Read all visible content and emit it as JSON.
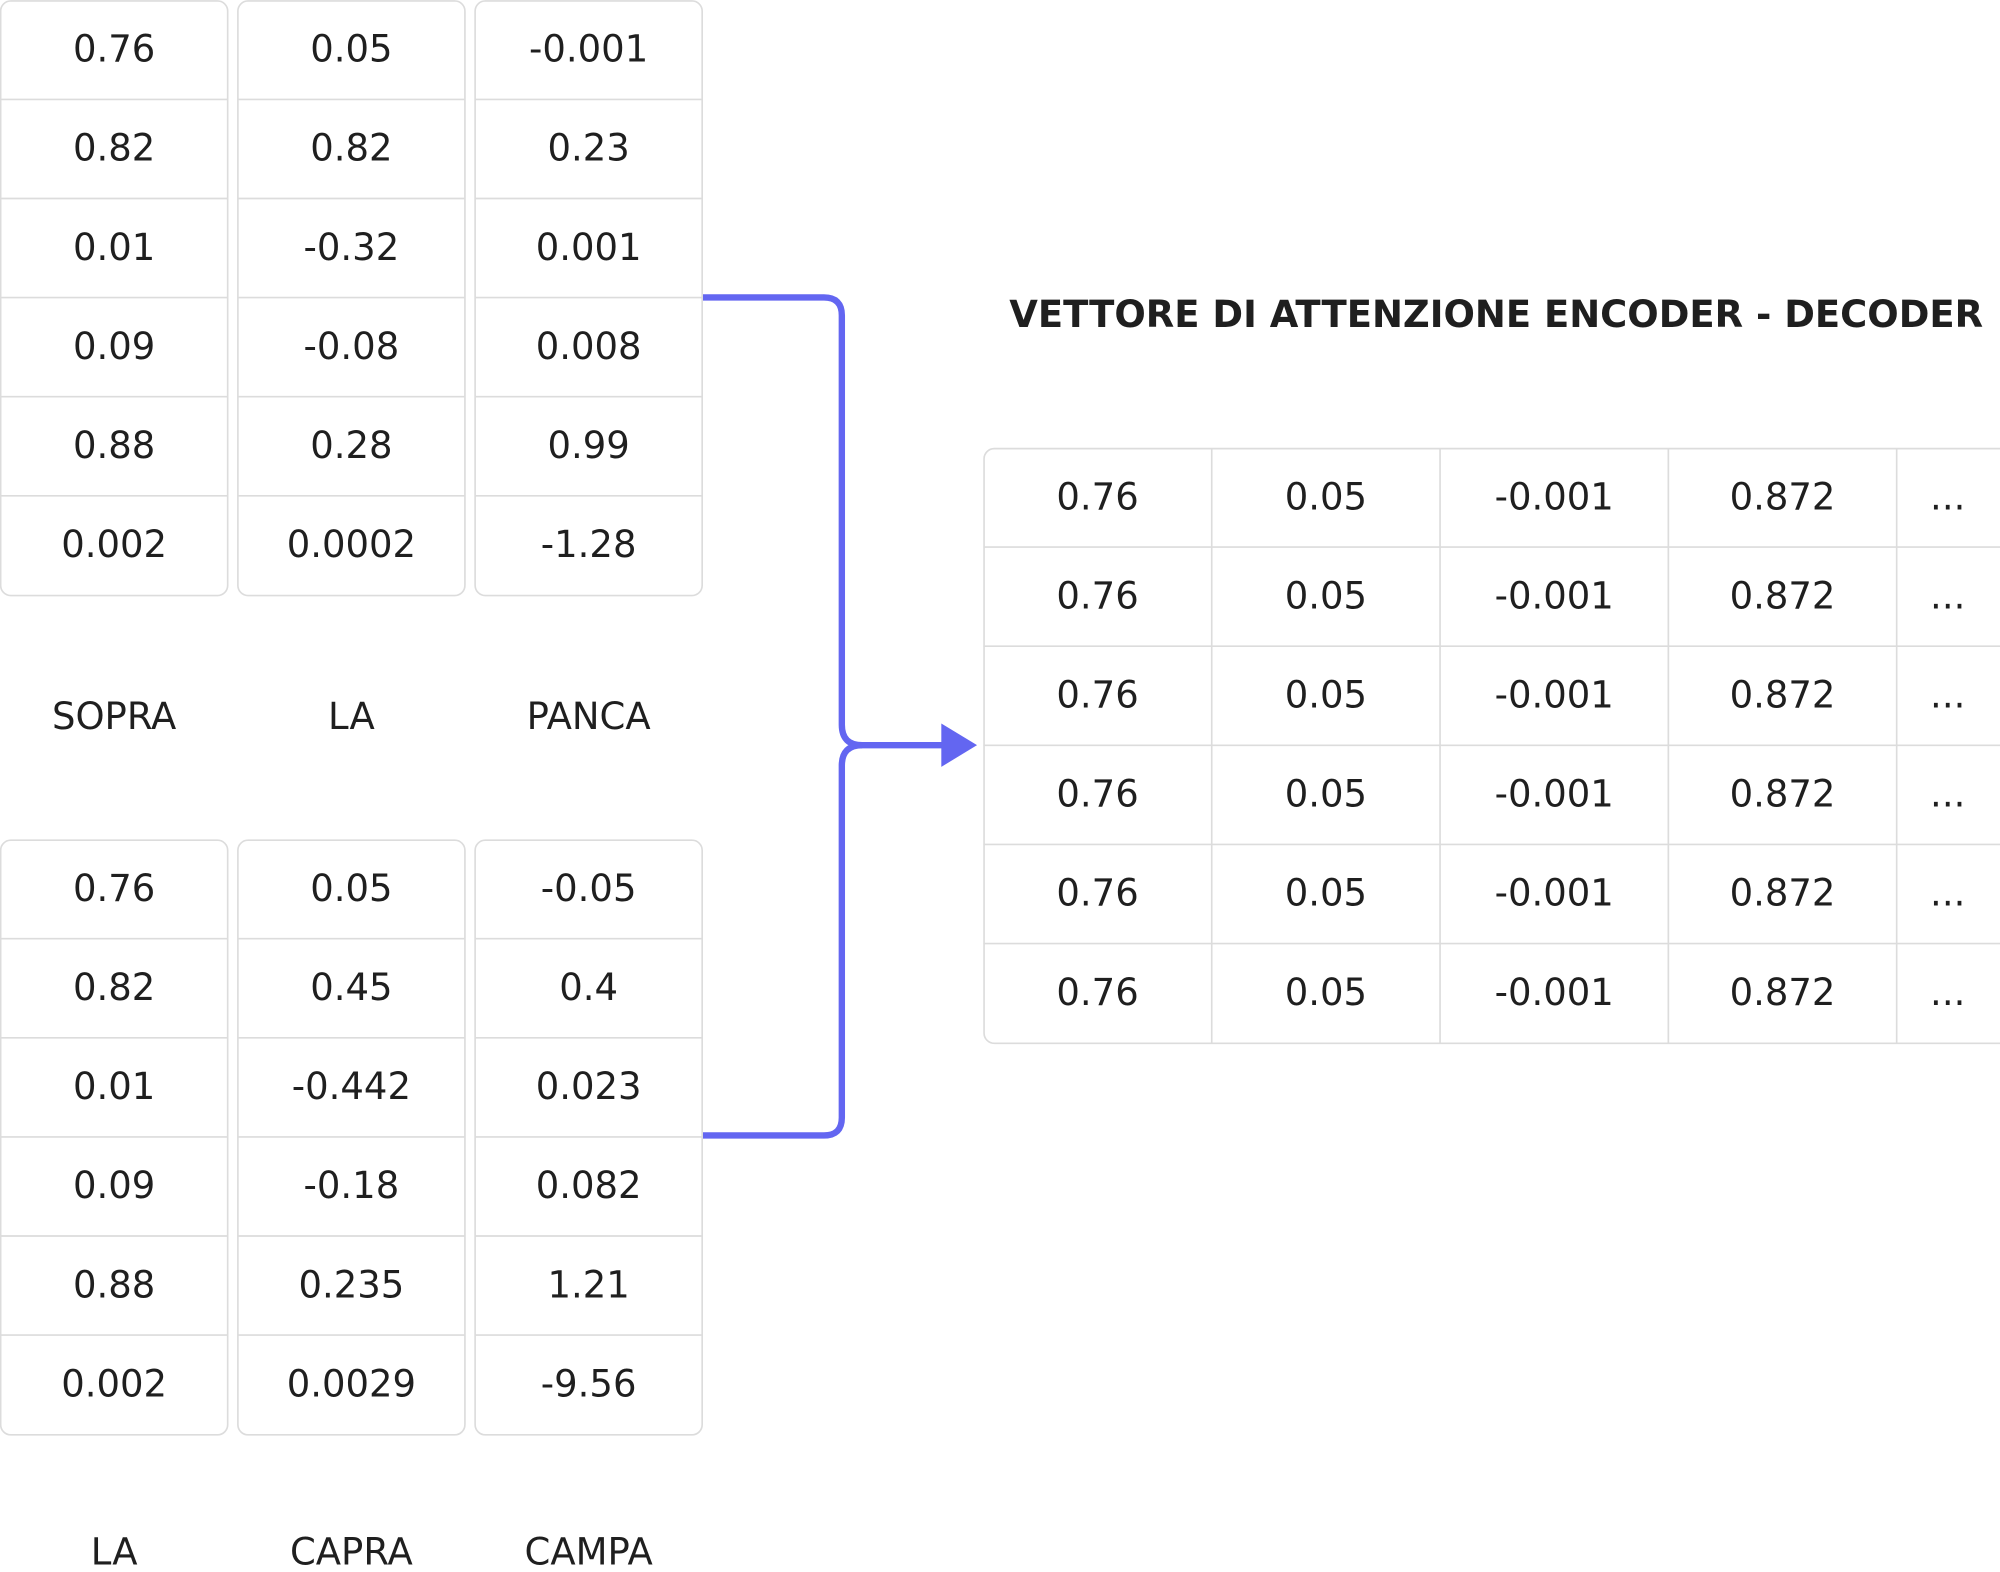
{
  "top_vectors": [
    {
      "word": "SOPRA",
      "values": [
        "0.76",
        "0.82",
        "0.01",
        "0.09",
        "0.88",
        "0.002"
      ]
    },
    {
      "word": "LA",
      "values": [
        "0.05",
        "0.82",
        "-0.32",
        "-0.08",
        "0.28",
        "0.0002"
      ]
    },
    {
      "word": "PANCA",
      "values": [
        "-0.001",
        "0.23",
        "0.001",
        "0.008",
        "0.99",
        "-1.28"
      ]
    }
  ],
  "bottom_vectors": [
    {
      "word": "LA",
      "values": [
        "0.76",
        "0.82",
        "0.01",
        "0.09",
        "0.88",
        "0.002"
      ]
    },
    {
      "word": "CAPRA",
      "values": [
        "0.05",
        "0.45",
        "-0.442",
        "-0.18",
        "0.235",
        "0.0029"
      ]
    },
    {
      "word": "CAMPA",
      "values": [
        "-0.05",
        "0.4",
        "0.023",
        "0.082",
        "1.21",
        "-9.56"
      ]
    }
  ],
  "output": {
    "title": "VETTORE DI ATTENZIONE ENCODER - DECODER",
    "rows": [
      [
        "0.76",
        "0.05",
        "-0.001",
        "0.872",
        "..."
      ],
      [
        "0.76",
        "0.05",
        "-0.001",
        "0.872",
        "..."
      ],
      [
        "0.76",
        "0.05",
        "-0.001",
        "0.872",
        "..."
      ],
      [
        "0.76",
        "0.05",
        "-0.001",
        "0.872",
        "..."
      ],
      [
        "0.76",
        "0.05",
        "-0.001",
        "0.872",
        "..."
      ],
      [
        "0.76",
        "0.05",
        "-0.001",
        "0.872",
        "..."
      ]
    ]
  }
}
